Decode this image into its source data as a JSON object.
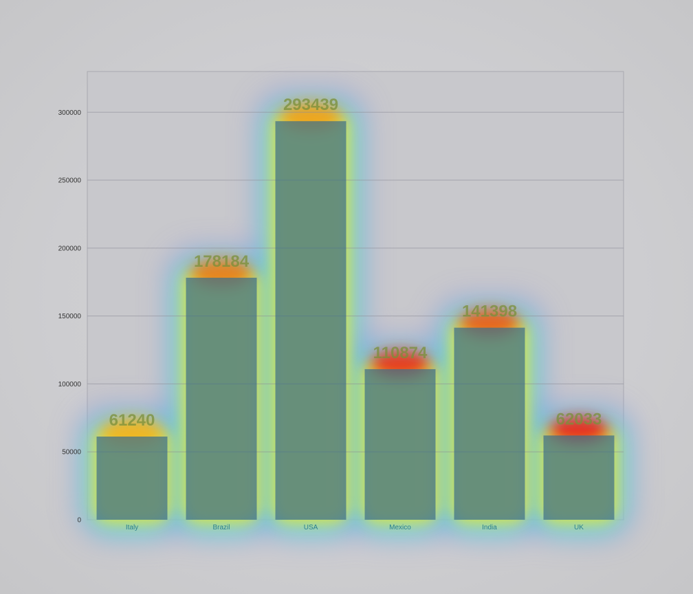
{
  "chart_data": {
    "type": "bar",
    "categories": [
      "Italy",
      "Brazil",
      "USA",
      "Mexico",
      "India",
      "UK"
    ],
    "values": [
      61240,
      178184,
      293439,
      110874,
      141398,
      62033
    ],
    "ylim": [
      0,
      330000
    ],
    "yticks": [
      0,
      50000,
      100000,
      150000,
      200000,
      250000,
      300000
    ],
    "grid": true,
    "bar_color": "#3d6f8a",
    "overlay": "attention heatmap"
  }
}
